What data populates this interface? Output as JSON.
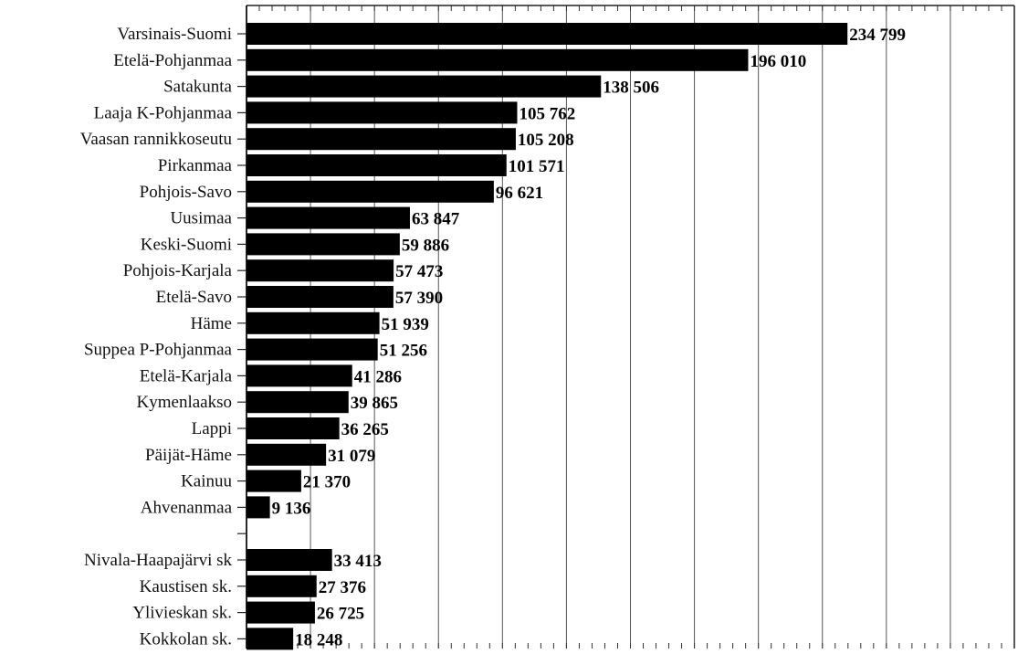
{
  "chart_data": {
    "type": "bar",
    "orientation": "horizontal",
    "title": "",
    "xlabel": "",
    "ylabel": "",
    "xlim": [
      0,
      300000
    ],
    "grid": "vertical",
    "legend": "none",
    "bar_color": "#000000",
    "categories": [
      "Varsinais-Suomi",
      "Etelä-Pohjanmaa",
      "Satakunta",
      "Laaja K-Pohjanmaa",
      "Vaasan rannikkoseutu",
      "Pirkanmaa",
      "Pohjois-Savo",
      "Uusimaa",
      "Keski-Suomi",
      "Pohjois-Karjala",
      "Etelä-Savo",
      "Häme",
      "Suppea P-Pohjanmaa",
      "Etelä-Karjala",
      "Kymenlaakso",
      "Lappi",
      "Päijät-Häme",
      "Kainuu",
      "Ahvenanmaa",
      "",
      "Nivala-Haapajärvi sk",
      "Kaustisen sk.",
      "Ylivieskan sk.",
      "Kokkolan sk."
    ],
    "values": [
      234799,
      196010,
      138506,
      105762,
      105208,
      101571,
      96621,
      63847,
      59886,
      57473,
      57390,
      51939,
      51256,
      41286,
      39865,
      36265,
      31079,
      21370,
      9136,
      null,
      33413,
      27376,
      26725,
      18248
    ],
    "value_labels": [
      "234 799",
      "196 010",
      "138 506",
      "105 762",
      "105 208",
      "101 571",
      "96 621",
      "63 847",
      "59 886",
      "57 473",
      "57 390",
      "51 939",
      "51 256",
      "41 286",
      "39 865",
      "36 265",
      "31 079",
      "21 370",
      "9 136",
      "",
      "33 413",
      "27 376",
      "26 725",
      "18 248"
    ]
  }
}
